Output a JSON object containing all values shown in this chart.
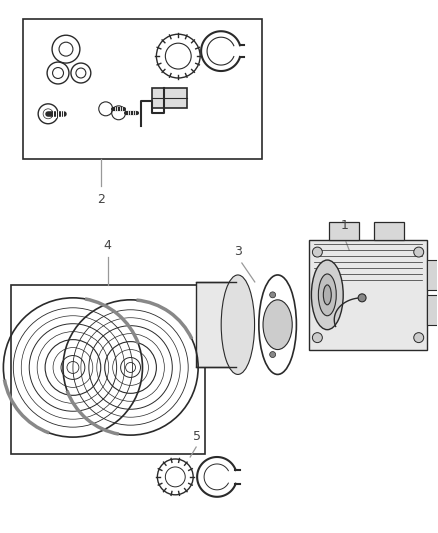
{
  "bg_color": "#ffffff",
  "line_color": "#2a2a2a",
  "label_color": "#555555",
  "fig_width": 4.38,
  "fig_height": 5.33,
  "dpi": 100
}
